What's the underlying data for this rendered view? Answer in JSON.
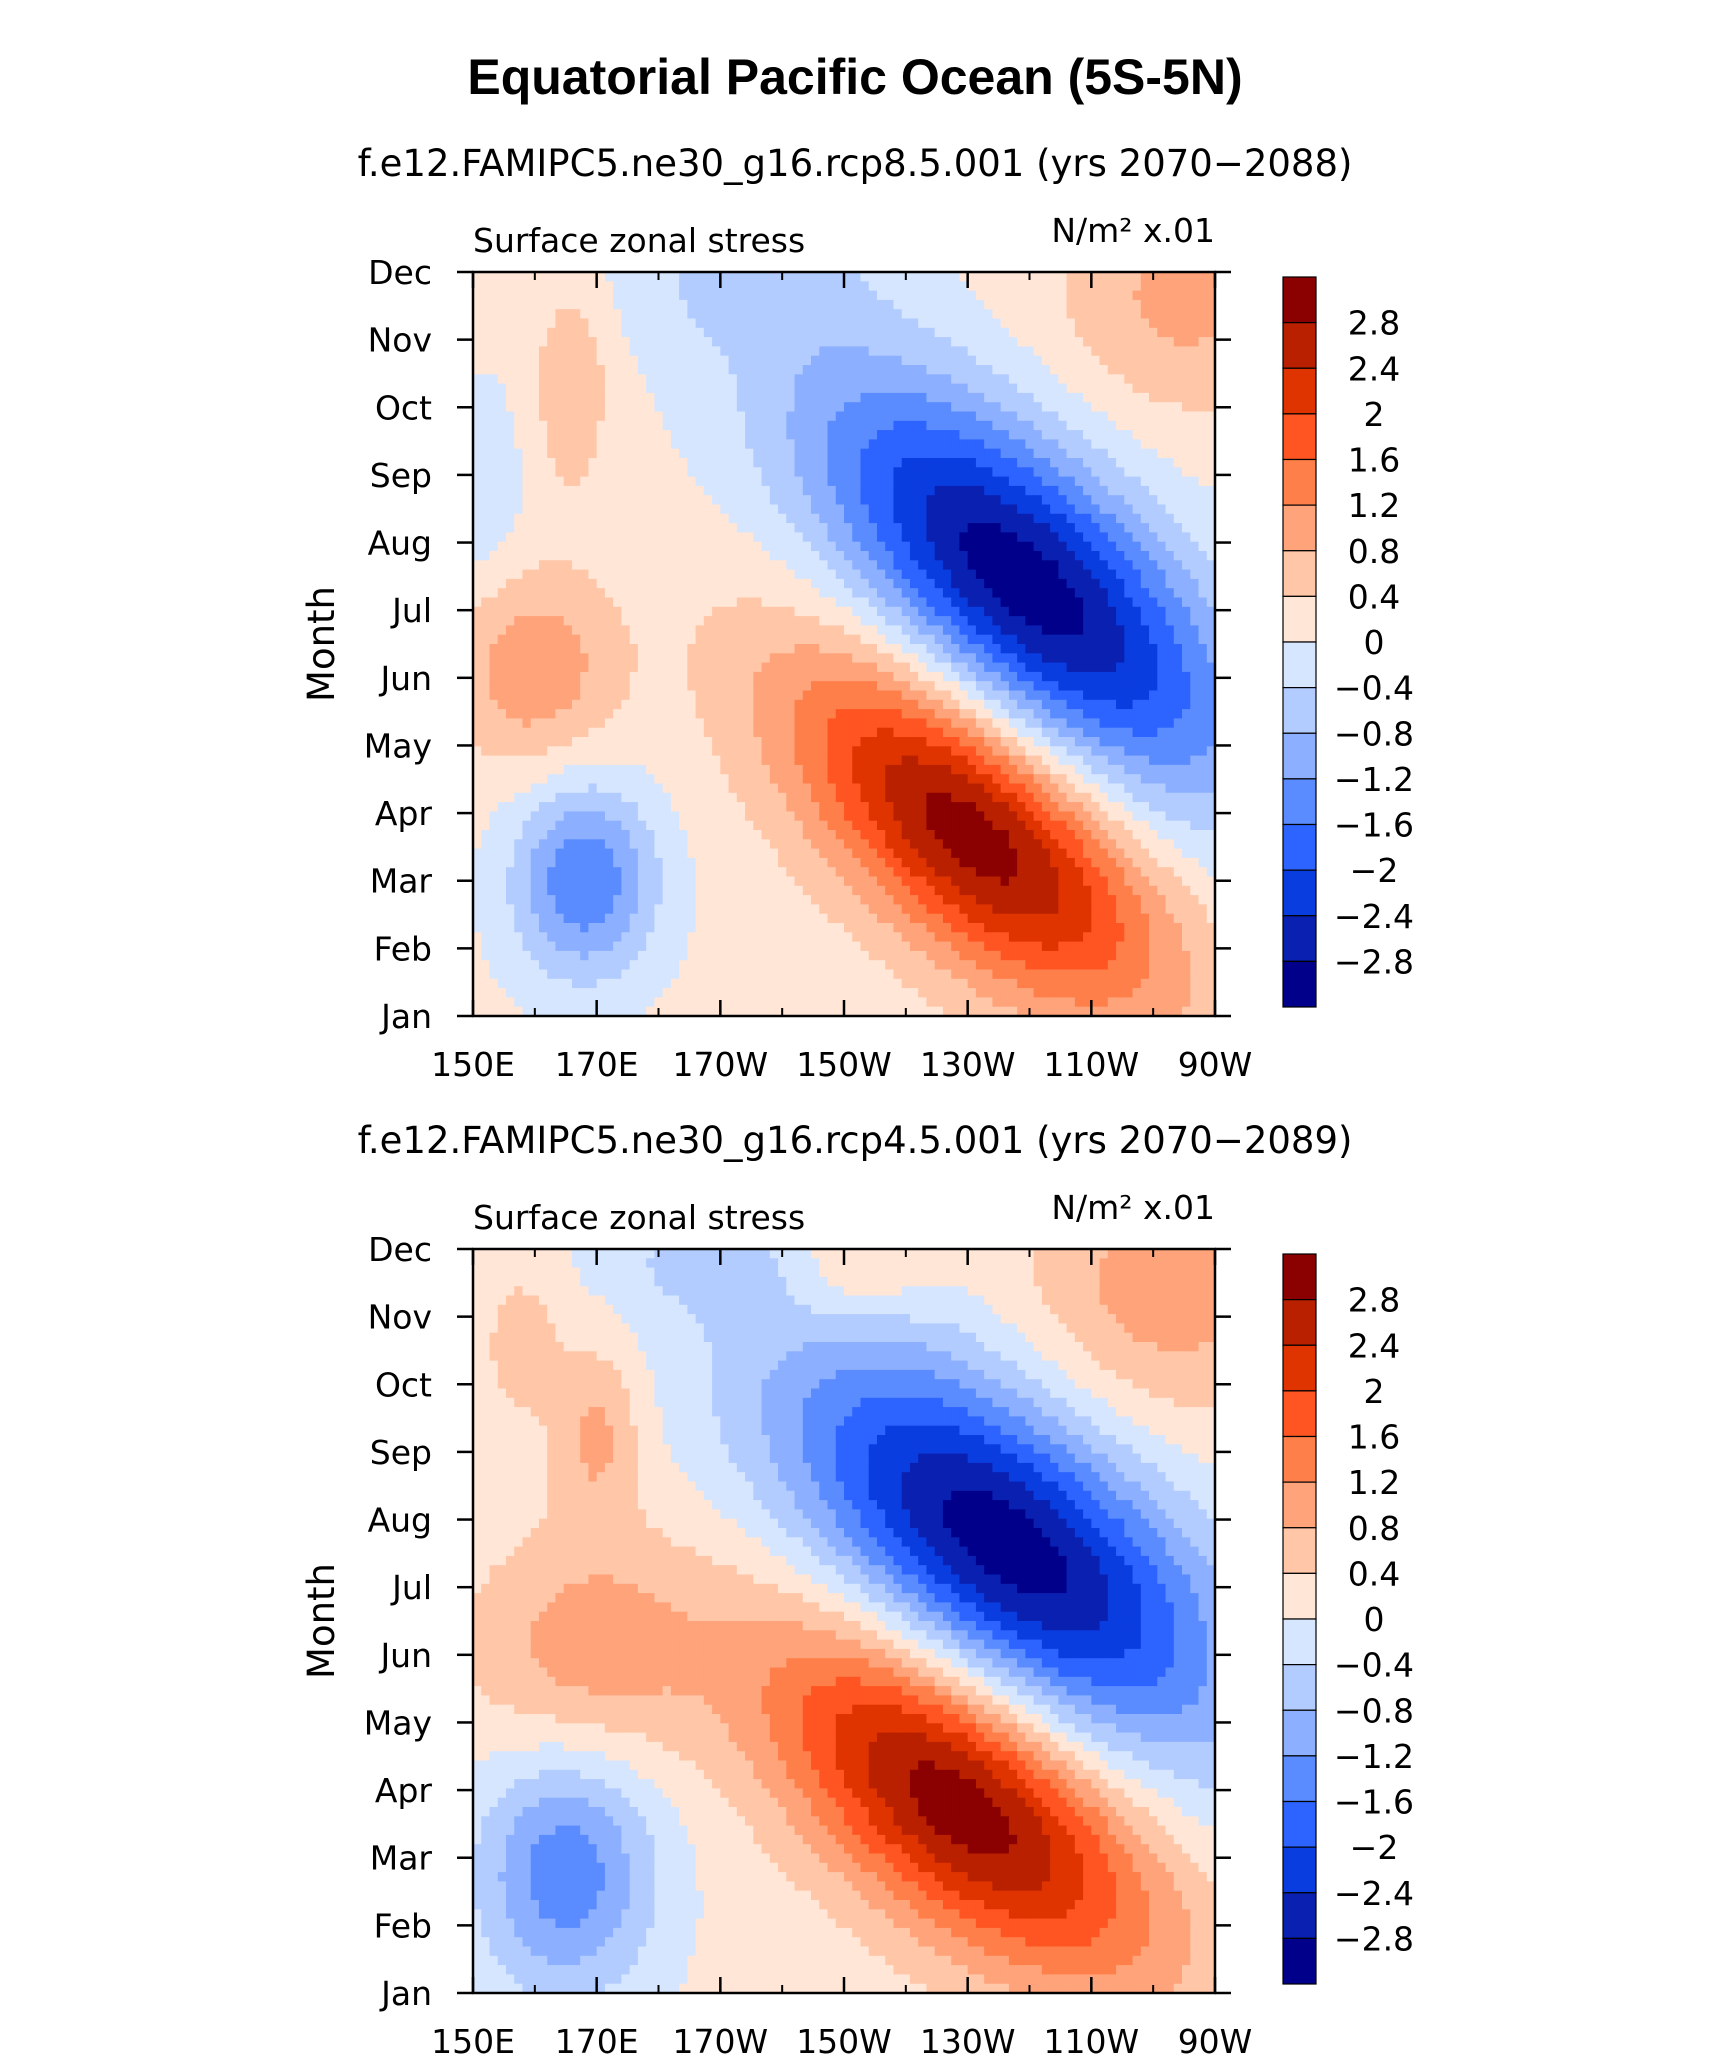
{
  "title": "Equatorial Pacific Ocean (5S-5N)",
  "colorbar": {
    "levels": [
      "2.8",
      "2.4",
      "2",
      "1.6",
      "1.2",
      "0.8",
      "0.4",
      "0",
      "−0.4",
      "−0.8",
      "−1.2",
      "−1.6",
      "−2",
      "−2.4",
      "−2.8"
    ],
    "colors": [
      "#8b0000",
      "#b82000",
      "#e03400",
      "#ff5522",
      "#ff7f4a",
      "#ffa37a",
      "#ffc6a8",
      "#ffe6d6",
      "#d6e6ff",
      "#b3ccff",
      "#8cb0ff",
      "#5a8cff",
      "#2d63ff",
      "#0a3de0",
      "#0a20b0",
      "#00008b"
    ]
  },
  "chart_data": [
    {
      "type": "heatmap",
      "subtitle": "f.e12.FAMIPC5.ne30_g16.rcp8.5.001 (yrs 2070−2088)",
      "left_string": "Surface zonal stress",
      "right_string": "N/m² x.01",
      "ylabel": "Month",
      "x_ticks": [
        "150E",
        "170E",
        "170W",
        "150W",
        "130W",
        "110W",
        "90W"
      ],
      "y_ticks": [
        "Jan",
        "Feb",
        "Mar",
        "Apr",
        "May",
        "Jun",
        "Jul",
        "Aug",
        "Sep",
        "Oct",
        "Nov",
        "Dec"
      ],
      "x_range": [
        150,
        270
      ],
      "y_range": [
        1,
        12
      ],
      "blobs": [
        {
          "lon": 239,
          "mon": 7.4,
          "slon": 24,
          "smon": 1.55,
          "amp": -3.2,
          "tilt": -0.06
        },
        {
          "lon": 231,
          "mon": 3.7,
          "slon": 21,
          "smon": 1.35,
          "amp": 2.95,
          "tilt": -0.055
        },
        {
          "lon": 168,
          "mon": 3.0,
          "slon": 8,
          "smon": 1.0,
          "amp": -1.7,
          "tilt": 0
        },
        {
          "lon": 160,
          "mon": 6.1,
          "slon": 9,
          "smon": 1.0,
          "amp": 1.0,
          "tilt": 0
        },
        {
          "lon": 265,
          "mon": 11.6,
          "slon": 14,
          "smon": 1.2,
          "amp": 0.8,
          "tilt": 0
        },
        {
          "lon": 166,
          "mon": 10.3,
          "slon": 4,
          "smon": 1.0,
          "amp": 0.7,
          "tilt": 0
        },
        {
          "lon": 195,
          "mon": 11.9,
          "slon": 14,
          "smon": 0.7,
          "amp": -0.5,
          "tilt": 0
        },
        {
          "lon": 152,
          "mon": 8.8,
          "slon": 4,
          "smon": 1.0,
          "amp": -0.5,
          "tilt": 0
        }
      ]
    },
    {
      "type": "heatmap",
      "subtitle": "f.e12.FAMIPC5.ne30_g16.rcp4.5.001 (yrs 2070−2089)",
      "left_string": "Surface zonal stress",
      "right_string": "N/m² x.01",
      "ylabel": "Month",
      "x_ticks": [
        "150E",
        "170E",
        "170W",
        "150W",
        "130W",
        "110W",
        "90W"
      ],
      "y_ticks": [
        "Jan",
        "Feb",
        "Mar",
        "Apr",
        "May",
        "Jun",
        "Jul",
        "Aug",
        "Sep",
        "Oct",
        "Nov",
        "Dec"
      ],
      "x_range": [
        150,
        270
      ],
      "y_range": [
        1,
        12
      ],
      "blobs": [
        {
          "lon": 236,
          "mon": 7.6,
          "slon": 25,
          "smon": 1.6,
          "amp": -3.2,
          "tilt": -0.05
        },
        {
          "lon": 229,
          "mon": 3.8,
          "slon": 22,
          "smon": 1.4,
          "amp": 3.0,
          "tilt": -0.05
        },
        {
          "lon": 165,
          "mon": 2.8,
          "slon": 10,
          "smon": 1.3,
          "amp": -1.6,
          "tilt": 0
        },
        {
          "lon": 168,
          "mon": 6.0,
          "slon": 13,
          "smon": 1.2,
          "amp": 0.9,
          "tilt": 0
        },
        {
          "lon": 262,
          "mon": 11.4,
          "slon": 16,
          "smon": 1.4,
          "amp": 0.9,
          "tilt": 0
        },
        {
          "lon": 170,
          "mon": 9.3,
          "slon": 5,
          "smon": 0.9,
          "amp": 0.8,
          "tilt": 0
        },
        {
          "lon": 158,
          "mon": 10.6,
          "slon": 4,
          "smon": 0.7,
          "amp": 0.6,
          "tilt": 0
        },
        {
          "lon": 212,
          "mon": 11.7,
          "slon": 8,
          "smon": 0.6,
          "amp": 0.6,
          "tilt": 0
        },
        {
          "lon": 188,
          "mon": 11.9,
          "slon": 12,
          "smon": 0.6,
          "amp": -0.5,
          "tilt": 0
        }
      ]
    }
  ]
}
